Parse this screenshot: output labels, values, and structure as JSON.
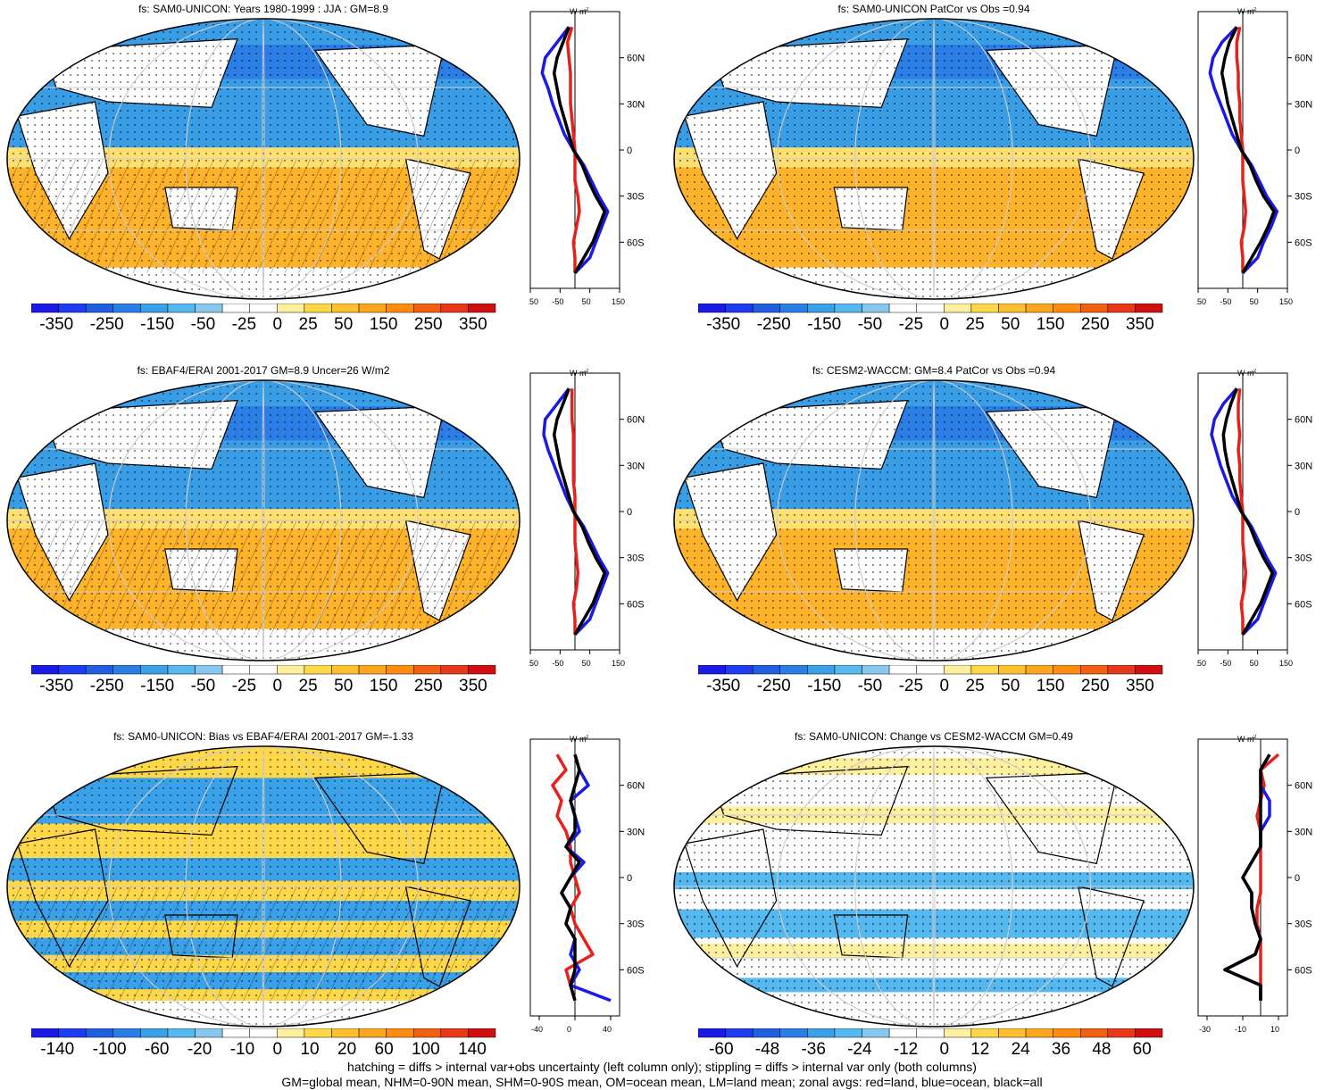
{
  "panels": [
    {
      "title": "fs: SAM0-UNICON: Years 1980-1999 : JJA : GM=8.9",
      "colorbar_labels": [
        "-350",
        "-250",
        "-150",
        "-50",
        "-25",
        "0",
        "25",
        "50",
        "150",
        "250",
        "350"
      ],
      "zonal_ticks": [
        "-150",
        "-50",
        "50",
        "150"
      ],
      "zonal_range": [
        -150,
        150
      ],
      "hatching": true,
      "style": "mean"
    },
    {
      "title": "fs: SAM0-UNICON PatCor vs Obs =0.94",
      "colorbar_labels": [
        "-350",
        "-250",
        "-150",
        "-50",
        "-25",
        "0",
        "25",
        "50",
        "150",
        "250",
        "350"
      ],
      "zonal_ticks": [
        "-150",
        "-50",
        "50",
        "150"
      ],
      "zonal_range": [
        -150,
        150
      ],
      "hatching": false,
      "style": "mean"
    },
    {
      "title": "fs: EBAF4/ERAI 2001-2017 GM=8.9 Uncer=26 W/m2",
      "colorbar_labels": [
        "-350",
        "-250",
        "-150",
        "-50",
        "-25",
        "0",
        "25",
        "50",
        "150",
        "250",
        "350"
      ],
      "zonal_ticks": [
        "-150",
        "-50",
        "50",
        "150"
      ],
      "zonal_range": [
        -150,
        150
      ],
      "hatching": true,
      "style": "mean"
    },
    {
      "title": "fs: CESM2-WACCM: GM=8.4 PatCor vs Obs =0.94",
      "colorbar_labels": [
        "-350",
        "-250",
        "-150",
        "-50",
        "-25",
        "0",
        "25",
        "50",
        "150",
        "250",
        "350"
      ],
      "zonal_ticks": [
        "-150",
        "-50",
        "50",
        "150"
      ],
      "zonal_range": [
        -150,
        150
      ],
      "hatching": false,
      "style": "mean"
    },
    {
      "title": "fs: SAM0-UNICON: Bias vs EBAF4/ERAI 2001-2017 GM=-1.33",
      "colorbar_labels": [
        "-140",
        "-100",
        "-60",
        "-20",
        "-10",
        "0",
        "10",
        "20",
        "60",
        "100",
        "140"
      ],
      "zonal_ticks": [
        "-40",
        "0",
        "40"
      ],
      "zonal_range": [
        -50,
        50
      ],
      "hatching": true,
      "style": "bias"
    },
    {
      "title": "fs: SAM0-UNICON: Change vs CESM2-WACCM GM=0.49",
      "colorbar_labels": [
        "-60",
        "-48",
        "-36",
        "-24",
        "-12",
        "0",
        "12",
        "24",
        "36",
        "48",
        "60"
      ],
      "zonal_ticks": [
        "-30",
        "-10",
        "10"
      ],
      "zonal_range": [
        -35,
        15
      ],
      "hatching": false,
      "style": "change"
    }
  ],
  "lat_labels": [
    "60N",
    "30N",
    "0",
    "30S",
    "60S"
  ],
  "units_label": "W m",
  "units_sup": "-2",
  "colorbar_colors": [
    "#1a1ae6",
    "#1e3cf0",
    "#2060e0",
    "#2a7ee6",
    "#3aa0e8",
    "#55b8ee",
    "#87c8ee",
    "#ffffff",
    "#ffffff",
    "#fff0a0",
    "#ffd84a",
    "#ffc030",
    "#ffa620",
    "#ff8c10",
    "#f06010",
    "#e8381a",
    "#d01010"
  ],
  "footer": [
    "hatching = diffs > internal var+obs uncertainty (left column only); stippling = diffs > internal var only (both columns)",
    "GM=global mean, NHM=0-90N mean, SHM=0-90S mean, OM=ocean mean, LM=land mean; zonal avgs: red=land, blue=ocean, black=all"
  ],
  "chart_data": [
    {
      "type": "heatmap",
      "title": "fs: SAM0-UNICON: Years 1980-1999 : JJA : GM=8.9",
      "colorbar": [
        -350,
        -250,
        -150,
        -50,
        -25,
        0,
        25,
        50,
        150,
        250,
        350
      ],
      "zonal": {
        "lat": [
          80,
          70,
          60,
          50,
          40,
          30,
          20,
          10,
          0,
          -10,
          -20,
          -30,
          -40,
          -50,
          -60,
          -70,
          -80
        ],
        "land": [
          -10,
          -25,
          -20,
          -15,
          -15,
          -15,
          -10,
          -5,
          0,
          0,
          0,
          10,
          15,
          5,
          -5,
          0,
          0
        ],
        "ocean": [
          -20,
          -60,
          -100,
          -110,
          -90,
          -75,
          -55,
          -35,
          -5,
          30,
          55,
          80,
          110,
          90,
          70,
          50,
          0
        ],
        "all": [
          -20,
          -40,
          -60,
          -70,
          -60,
          -50,
          -35,
          -20,
          -5,
          25,
          45,
          70,
          100,
          80,
          60,
          30,
          0
        ]
      }
    },
    {
      "type": "heatmap",
      "title": "fs: SAM0-UNICON PatCor vs Obs =0.94",
      "colorbar": [
        -350,
        -250,
        -150,
        -50,
        -25,
        0,
        25,
        50,
        150,
        250,
        350
      ],
      "zonal": {
        "lat": [
          80,
          70,
          60,
          50,
          40,
          30,
          20,
          10,
          0,
          -10,
          -20,
          -30,
          -40,
          -50,
          -60,
          -70,
          -80
        ],
        "land": [
          -10,
          -20,
          -20,
          -15,
          -15,
          -10,
          -10,
          -5,
          0,
          0,
          0,
          5,
          10,
          5,
          -5,
          0,
          0
        ],
        "ocean": [
          -20,
          -70,
          -100,
          -110,
          -95,
          -75,
          -55,
          -35,
          -5,
          30,
          55,
          80,
          115,
          95,
          70,
          50,
          0
        ],
        "all": [
          -20,
          -45,
          -60,
          -70,
          -60,
          -50,
          -35,
          -20,
          -5,
          25,
          45,
          70,
          105,
          85,
          60,
          30,
          0
        ]
      }
    },
    {
      "type": "heatmap",
      "title": "fs: EBAF4/ERAI 2001-2017 GM=8.9 Uncer=26 W/m2",
      "colorbar": [
        -350,
        -250,
        -150,
        -50,
        -25,
        0,
        25,
        50,
        150,
        250,
        350
      ],
      "zonal": {
        "lat": [
          80,
          70,
          60,
          50,
          40,
          30,
          20,
          10,
          0,
          -10,
          -20,
          -30,
          -40,
          -50,
          -60,
          -70,
          -80
        ],
        "land": [
          -10,
          -10,
          -10,
          -5,
          -5,
          -5,
          -5,
          0,
          0,
          0,
          0,
          5,
          10,
          5,
          -5,
          0,
          0
        ],
        "ocean": [
          -20,
          -60,
          -100,
          -105,
          -90,
          -70,
          -50,
          -30,
          -5,
          30,
          55,
          80,
          110,
          90,
          70,
          50,
          0
        ],
        "all": [
          -20,
          -40,
          -60,
          -70,
          -60,
          -50,
          -35,
          -20,
          -5,
          25,
          45,
          70,
          100,
          80,
          60,
          30,
          0
        ]
      }
    },
    {
      "type": "heatmap",
      "title": "fs: CESM2-WACCM: GM=8.4 PatCor vs Obs =0.94",
      "colorbar": [
        -350,
        -250,
        -150,
        -50,
        -25,
        0,
        25,
        50,
        150,
        250,
        350
      ],
      "zonal": {
        "lat": [
          80,
          70,
          60,
          50,
          40,
          30,
          20,
          10,
          0,
          -10,
          -20,
          -30,
          -40,
          -50,
          -60,
          -70,
          -80
        ],
        "land": [
          -10,
          -15,
          -15,
          -10,
          -15,
          -10,
          -10,
          -5,
          0,
          0,
          0,
          5,
          10,
          5,
          -5,
          0,
          0
        ],
        "ocean": [
          -20,
          -65,
          -95,
          -105,
          -90,
          -75,
          -55,
          -35,
          -5,
          30,
          55,
          80,
          110,
          90,
          70,
          50,
          0
        ],
        "all": [
          -20,
          -40,
          -55,
          -65,
          -60,
          -50,
          -35,
          -20,
          -5,
          25,
          45,
          70,
          100,
          80,
          60,
          30,
          0
        ]
      }
    },
    {
      "type": "heatmap",
      "title": "fs: SAM0-UNICON: Bias vs EBAF4/ERAI 2001-2017 GM=-1.33",
      "colorbar": [
        -140,
        -100,
        -60,
        -20,
        -10,
        0,
        10,
        20,
        60,
        100,
        140
      ],
      "zonal": {
        "lat": [
          80,
          70,
          60,
          50,
          40,
          30,
          20,
          10,
          0,
          -10,
          -20,
          -30,
          -40,
          -50,
          -60,
          -70,
          -80
        ],
        "land": [
          -20,
          -10,
          -25,
          -15,
          -20,
          -10,
          -5,
          -5,
          0,
          5,
          -5,
          0,
          10,
          20,
          -10,
          -5,
          0
        ],
        "ocean": [
          0,
          5,
          15,
          -5,
          0,
          5,
          -10,
          10,
          -5,
          -15,
          -5,
          -10,
          0,
          -5,
          5,
          -5,
          40
        ],
        "all": [
          0,
          5,
          0,
          -5,
          0,
          0,
          -10,
          5,
          -5,
          -15,
          -5,
          -10,
          0,
          0,
          0,
          -5,
          0
        ]
      }
    },
    {
      "type": "heatmap",
      "title": "fs: SAM0-UNICON: Change vs CESM2-WACCM GM=0.49",
      "colorbar": [
        -60,
        -48,
        -36,
        -24,
        -12,
        0,
        12,
        24,
        36,
        48,
        60
      ],
      "zonal": {
        "lat": [
          80,
          70,
          60,
          50,
          40,
          30,
          20,
          10,
          0,
          -10,
          -20,
          -30,
          -40,
          -50,
          -60,
          -70,
          -80
        ],
        "land": [
          10,
          0,
          2,
          0,
          -2,
          0,
          0,
          0,
          0,
          0,
          -2,
          -2,
          0,
          0,
          0,
          0,
          0
        ],
        "ocean": [
          5,
          0,
          0,
          5,
          5,
          0,
          0,
          -5,
          -10,
          -5,
          -5,
          -3,
          0,
          -3,
          -20,
          0,
          0
        ],
        "all": [
          5,
          0,
          0,
          0,
          0,
          0,
          0,
          -5,
          -10,
          -5,
          -5,
          -3,
          0,
          -3,
          -20,
          0,
          0
        ]
      }
    }
  ]
}
